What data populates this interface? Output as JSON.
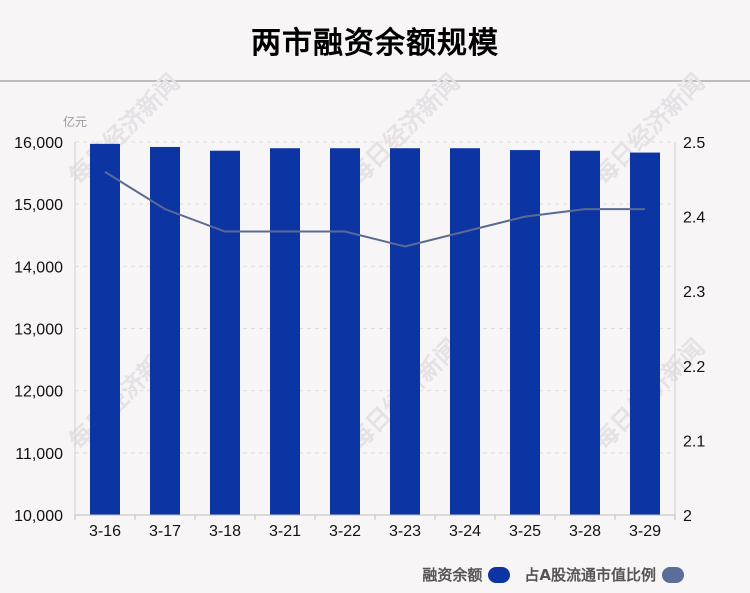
{
  "title": "两市融资余额规模",
  "legend": {
    "bars_label": "融资余额",
    "line_label": "占A股流通市值比例"
  },
  "watermark_text": "每日经济新闻",
  "colors": {
    "bar": "#0c35a3",
    "line": "#5a6a92",
    "legend_line_swatch": "#5b6d99"
  },
  "chart_data": {
    "type": "bar",
    "categories": [
      "3-16",
      "3-17",
      "3-18",
      "3-21",
      "3-22",
      "3-23",
      "3-24",
      "3-25",
      "3-28",
      "3-29"
    ],
    "series": [
      {
        "name": "融资余额",
        "type": "bar",
        "axis": "left",
        "values": [
          15970,
          15920,
          15860,
          15900,
          15900,
          15900,
          15900,
          15870,
          15860,
          15830
        ]
      },
      {
        "name": "占A股流通市值比例",
        "type": "line",
        "axis": "right",
        "values": [
          2.46,
          2.41,
          2.38,
          2.38,
          2.38,
          2.36,
          2.38,
          2.4,
          2.41,
          2.41
        ]
      }
    ],
    "y_left": {
      "unit": "亿元",
      "ylim": [
        10000,
        16000
      ],
      "ticks": [
        "10,000",
        "11,000",
        "12,000",
        "13,000",
        "14,000",
        "15,000",
        "16,000"
      ]
    },
    "y_right": {
      "ylim": [
        2.0,
        2.5
      ],
      "ticks": [
        "2",
        "2.1",
        "2.2",
        "2.3",
        "2.4",
        "2.5"
      ]
    },
    "grid": true,
    "legend_position": "bottom-right"
  }
}
